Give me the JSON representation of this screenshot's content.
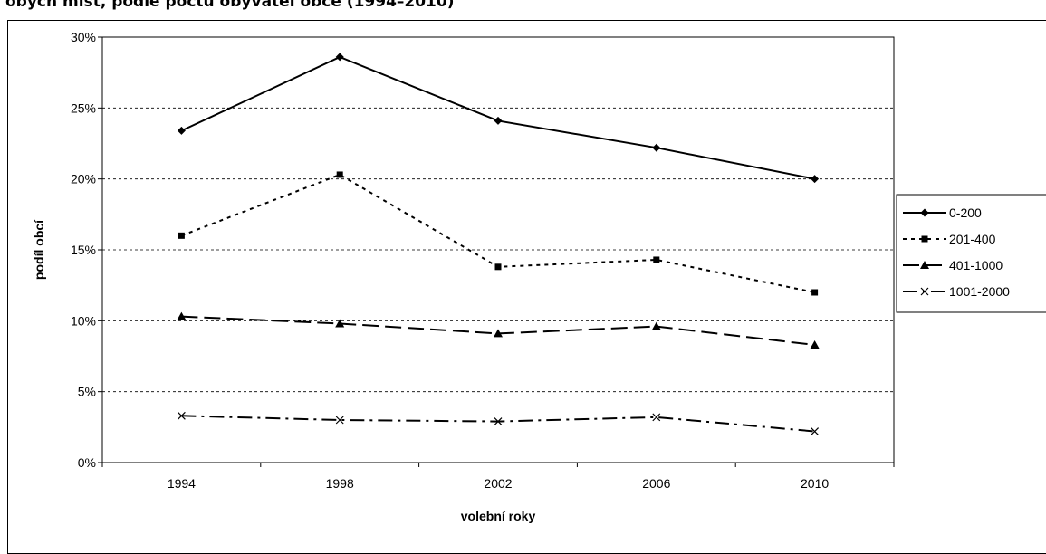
{
  "page": {
    "title": "obých míst, podle počtu obyvatel obce (1994–2010)"
  },
  "chart_data": {
    "type": "line",
    "title": "",
    "xlabel": "volební roky",
    "ylabel": "podíl obcí",
    "categories": [
      "1994",
      "1998",
      "2002",
      "2006",
      "2010"
    ],
    "ylim": [
      0,
      30
    ],
    "yticks": [
      "0%",
      "5%",
      "10%",
      "15%",
      "20%",
      "25%",
      "30%"
    ],
    "ytick_values": [
      0,
      5,
      10,
      15,
      20,
      25,
      30
    ],
    "grid": "horizontal-dashed",
    "legend_position": "right",
    "series": [
      {
        "name": "0-200",
        "values": [
          23.4,
          28.6,
          24.1,
          22.2,
          20.0
        ],
        "marker": "diamond",
        "dash": "solid"
      },
      {
        "name": "201-400",
        "values": [
          16.0,
          20.3,
          13.8,
          14.3,
          12.0
        ],
        "marker": "square",
        "dash": "dotted"
      },
      {
        "name": "401-1000",
        "values": [
          10.3,
          9.8,
          9.1,
          9.6,
          8.3
        ],
        "marker": "triangle",
        "dash": "long-dash"
      },
      {
        "name": "1001-2000",
        "values": [
          3.3,
          3.0,
          2.9,
          3.2,
          2.2
        ],
        "marker": "x",
        "dash": "dash-dot"
      }
    ]
  }
}
